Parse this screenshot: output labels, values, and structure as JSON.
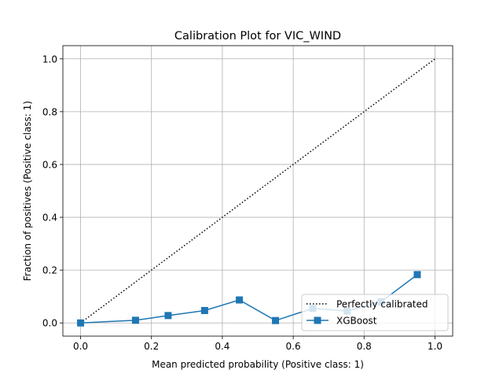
{
  "chart_data": {
    "type": "line",
    "title": "Calibration Plot for VIC_WIND",
    "xlabel": "Mean predicted probability (Positive class: 1)",
    "ylabel": "Fraction of positives (Positive class: 1)",
    "xlim": [
      -0.05,
      1.05
    ],
    "ylim": [
      -0.05,
      1.05
    ],
    "xticks": [
      0.0,
      0.2,
      0.4,
      0.6,
      0.8,
      1.0
    ],
    "yticks": [
      0.0,
      0.2,
      0.4,
      0.6,
      0.8,
      1.0
    ],
    "xtick_labels": [
      "0.0",
      "0.2",
      "0.4",
      "0.6",
      "0.8",
      "1.0"
    ],
    "ytick_labels": [
      "0.0",
      "0.2",
      "0.4",
      "0.6",
      "0.8",
      "1.0"
    ],
    "grid": true,
    "legend_position": "lower-right",
    "series": [
      {
        "name": "Perfectly calibrated",
        "style": "dotted",
        "color": "#000000",
        "marker": "none",
        "x": [
          0.0,
          1.0
        ],
        "y": [
          0.0,
          1.0
        ]
      },
      {
        "name": "XGBoost",
        "style": "solid",
        "color": "#1f77b4",
        "marker": "square",
        "x": [
          0.0,
          0.155,
          0.247,
          0.35,
          0.448,
          0.55,
          0.655,
          0.752,
          0.848,
          0.95
        ],
        "y": [
          0.0,
          0.01,
          0.028,
          0.047,
          0.087,
          0.009,
          0.055,
          0.045,
          0.08,
          0.183
        ]
      }
    ]
  }
}
